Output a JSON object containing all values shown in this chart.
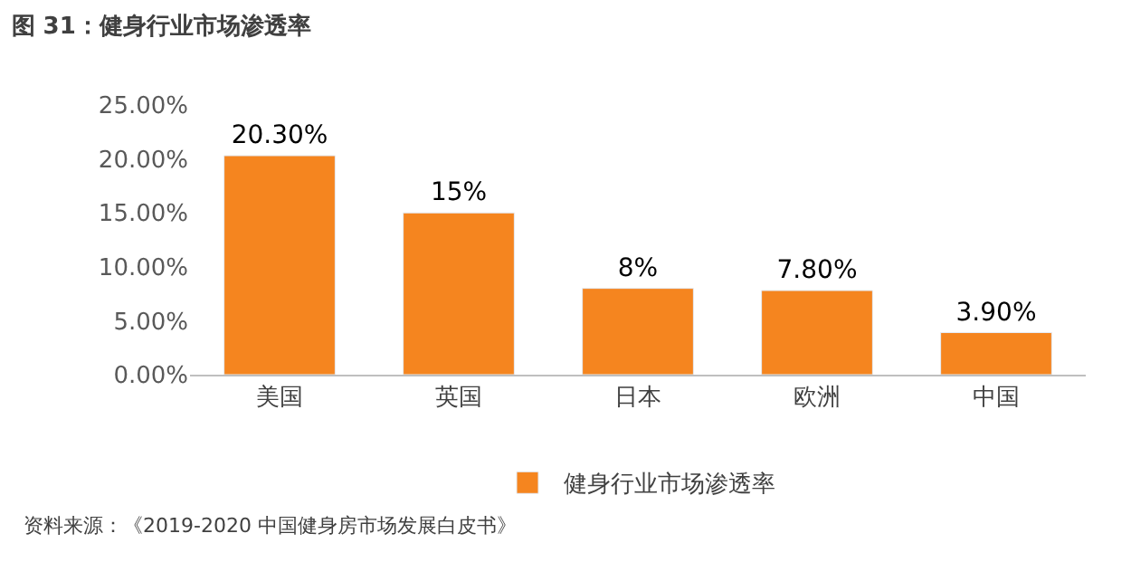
{
  "chart_data": {
    "type": "bar",
    "title": "图 31：健身行业市场渗透率",
    "categories": [
      "美国",
      "英国",
      "日本",
      "欧洲",
      "中国"
    ],
    "series": [
      {
        "name": "健身行业市场渗透率",
        "color": "#f5851f",
        "values": [
          20.3,
          15,
          8,
          7.8,
          3.9
        ],
        "value_labels": [
          "20.30%",
          "15%",
          "8%",
          "7.80%",
          "3.90%"
        ]
      }
    ],
    "ylim": [
      0,
      25
    ],
    "yticks": [
      {
        "value": 0,
        "label": "0.00%"
      },
      {
        "value": 5,
        "label": "5.00%"
      },
      {
        "value": 10,
        "label": "10.00%"
      },
      {
        "value": 15,
        "label": "15.00%"
      },
      {
        "value": 20,
        "label": "20.00%"
      },
      {
        "value": 25,
        "label": "25.00%"
      }
    ],
    "legend": "bottom",
    "annotations": [
      "资料来源：《2019-2020 中国健身房市场发展白皮书》"
    ]
  }
}
